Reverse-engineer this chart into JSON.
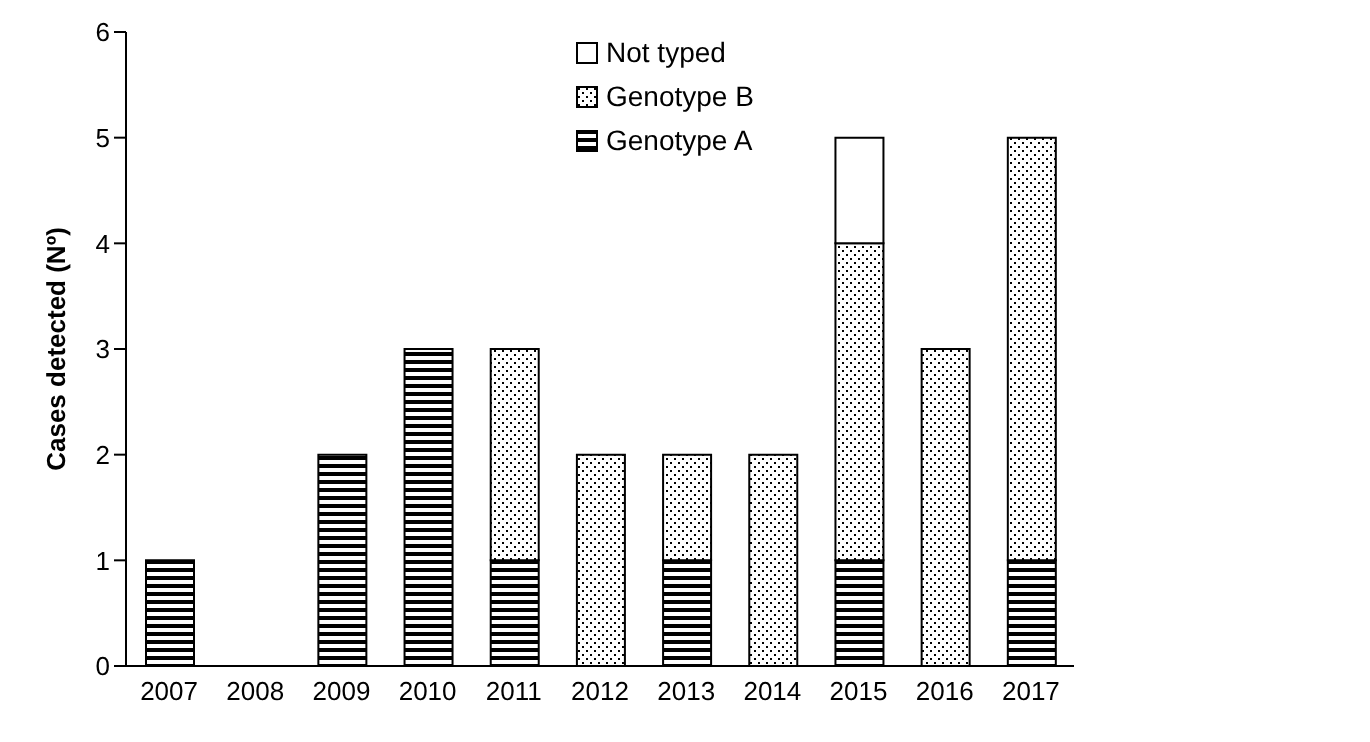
{
  "chart_data": {
    "type": "bar",
    "stacked": true,
    "ylabel": "Cases detected (Nº)",
    "categories": [
      "2007",
      "2008",
      "2009",
      "2010",
      "2011",
      "2012",
      "2013",
      "2014",
      "2015",
      "2016",
      "2017"
    ],
    "series": [
      {
        "name": "Genotype A",
        "color": "#000000",
        "values": [
          1,
          0,
          2,
          3,
          1,
          0,
          1,
          0,
          1,
          0,
          1
        ]
      },
      {
        "name": "Genotype B",
        "color": "#000000",
        "values": [
          0,
          0,
          0,
          0,
          2,
          2,
          1,
          2,
          3,
          3,
          4
        ]
      },
      {
        "name": "Not typed",
        "color": "#ffffff",
        "values": [
          0,
          0,
          0,
          0,
          0,
          0,
          0,
          0,
          1,
          0,
          0
        ]
      }
    ],
    "ylim": [
      0,
      6
    ],
    "yticks": [
      0,
      1,
      2,
      3,
      4,
      5,
      6
    ],
    "grid": false,
    "legend": "top right"
  }
}
